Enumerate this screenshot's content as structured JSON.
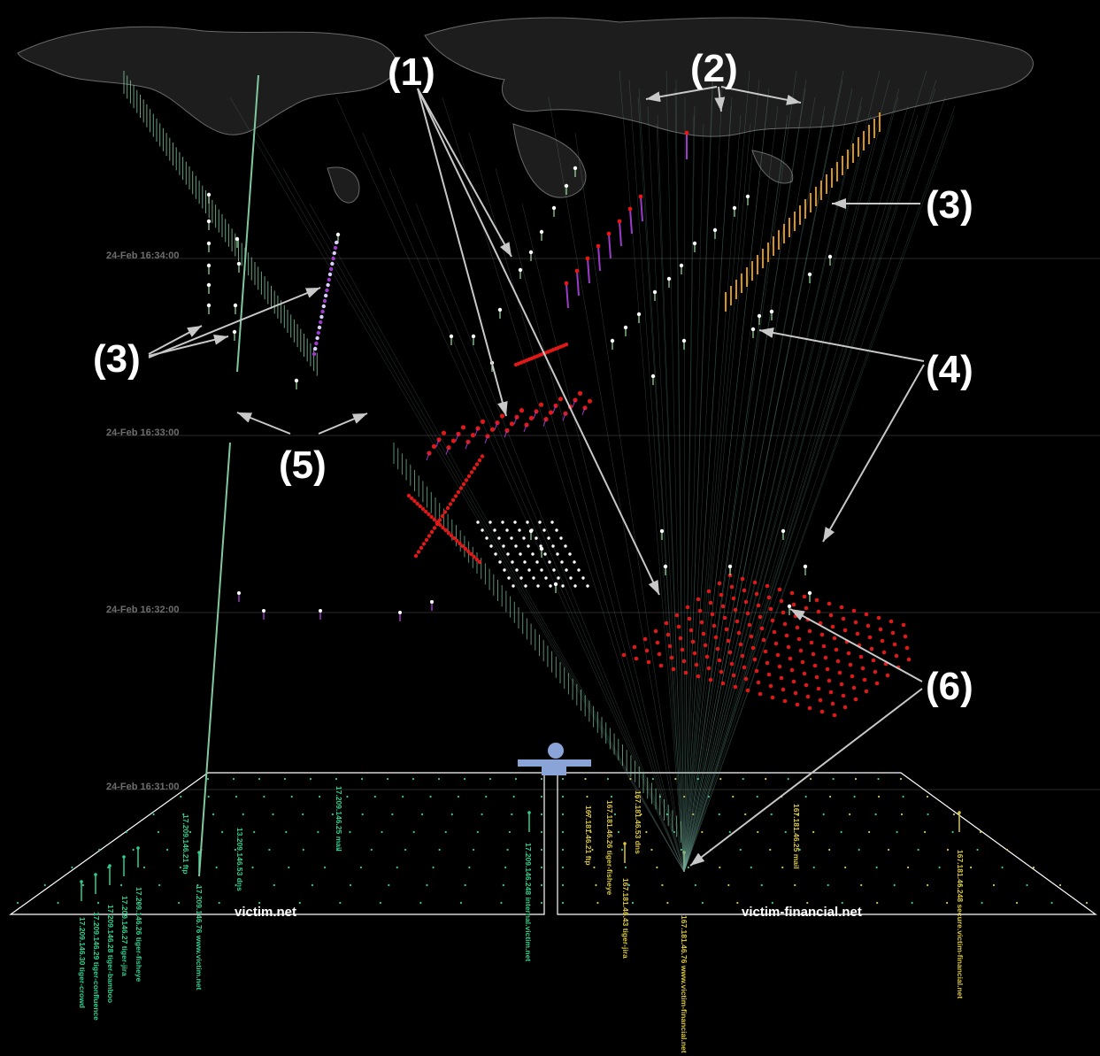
{
  "timeline": {
    "labels": [
      "24-Feb 16:34:00",
      "24-Feb 16:33:00",
      "24-Feb 16:32:00",
      "24-Feb 16:31:00"
    ]
  },
  "callouts": [
    "(1)",
    "(2)",
    "(3)",
    "(3)",
    "(4)",
    "(5)",
    "(6)"
  ],
  "domains": {
    "left": "victim.net",
    "right": "victim-financial.net"
  },
  "hosts": {
    "left": [
      "17.209.146.30 tiger-crowd",
      "17.209.146.29 tiger-confluence",
      "17.209.146.28 tiger-bamboo",
      "17.209.146.27 tiger-jira",
      "17.209.146.26 tiger-fisheye",
      "17.209.146.76 www.victim.net",
      "17.209.146.248 internal.victim.net"
    ],
    "left_small": [
      "13.209.146.53 dns",
      "17.209.146.21 ftp",
      "17.209.146.25 mail"
    ],
    "right": [
      "167.181.46.43 tiger-jira",
      "167.181.46.76 www.victim-financial.net",
      "167.181.46.248 secure.victim-financial.net"
    ],
    "right_small": [
      "167.181.46.21 ftp",
      "167.181.46.26 tiger-fisheye",
      "167.181.46.53 dns",
      "167.181.46.25 mail"
    ]
  },
  "colors": {
    "background": "#000000",
    "attack_red": "#e01818",
    "probe_white": "#ffffff",
    "scan_green": "#7fc8a0",
    "purple": "#9b3cc8",
    "orange": "#f0a020",
    "host_green": "#2fcf8f",
    "host_yellow": "#d8c640",
    "arrow": "#c0c0c0"
  },
  "icons": [
    "world-map-icon",
    "user-figure-icon"
  ]
}
